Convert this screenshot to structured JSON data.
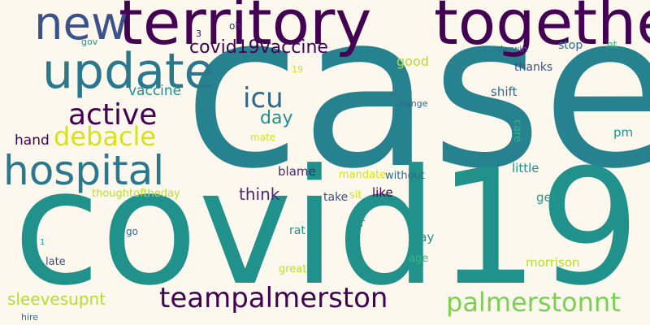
{
  "words": {
    "case": "case",
    "covid19": "covid19",
    "territory": "territory",
    "together": "together",
    "new": "new",
    "update": "update",
    "hospital": "hospital",
    "active": "active",
    "debacle": "debacle",
    "covid19vaccine": "covid19vaccine",
    "icu": "icu",
    "day": "day",
    "teampalmerston": "teampalmerston",
    "palmerstonnt": "palmerstonnt",
    "vaccine": "vaccine",
    "hand": "hand",
    "think": "think",
    "sleevesupnt": "sleevesupnt",
    "good": "good",
    "stop": "stop",
    "thanks": "thanks",
    "shift": "shift",
    "pm": "pm",
    "care": "care",
    "little": "little",
    "get": "get",
    "morrison": "morrison",
    "blame": "blame",
    "mandate": "mandate",
    "without": "without",
    "like": "like",
    "take": "take",
    "sit": "sit",
    "thoughtoftheday": "thoughtoftheday",
    "mate": "mate",
    "car": "car",
    "rat": "rat",
    "way": "way",
    "age": "age",
    "great": "great",
    "go": "go",
    "late": "late",
    "one": "1",
    "hire": "hire",
    "gov": "gov",
    "three": "3",
    "oh": "oh",
    "nineteen": "19",
    "change": "change",
    "darwin": "darwin",
    "nt": "nt"
  },
  "colors": {
    "background": "#fdf8ee",
    "dark_purple": "#440154",
    "indigo": "#3b528b",
    "slate": "#31688e",
    "teal": "#21918c",
    "cyan_teal": "#26828e",
    "sea_green": "#1f9e89",
    "green": "#35b779",
    "light_green": "#6ece58",
    "lime": "#b5de2b",
    "yellow": "#d8e219"
  }
}
